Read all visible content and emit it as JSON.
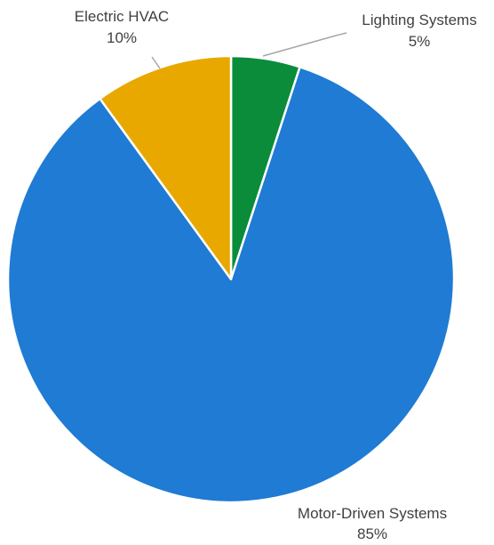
{
  "chart_data": {
    "type": "pie",
    "title": "",
    "slices": [
      {
        "label": "Lighting Systems",
        "value": 5,
        "value_label": "5%",
        "color": "#0a8c3a"
      },
      {
        "label": "Motor-Driven Systems",
        "value": 85,
        "value_label": "85%",
        "color": "#1f7bd3"
      },
      {
        "label": "Electric HVAC",
        "value": 10,
        "value_label": "10%",
        "color": "#e8a800"
      }
    ],
    "start_angle_deg": 0,
    "direction": "clockwise",
    "legend": "none",
    "data_labels": "outside with leader lines"
  }
}
